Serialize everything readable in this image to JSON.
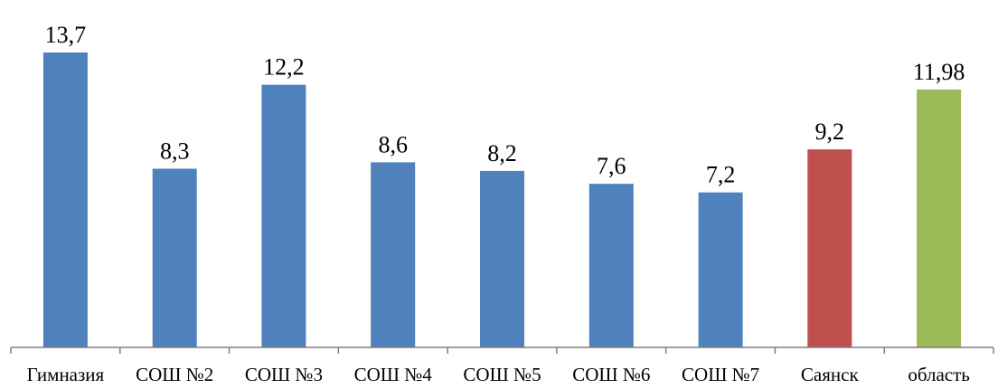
{
  "chart_data": {
    "type": "bar",
    "categories": [
      "Гимназия",
      "СОШ №2",
      "СОШ №3",
      "СОШ №4",
      "СОШ №5",
      "СОШ №6",
      "СОШ №7",
      "Саянск",
      "область"
    ],
    "values": [
      13.7,
      8.3,
      12.2,
      8.6,
      8.2,
      7.6,
      7.2,
      9.2,
      11.98
    ],
    "data_labels": [
      "13,7",
      "8,3",
      "12,2",
      "8,6",
      "8,2",
      "7,6",
      "7,2",
      "9,2",
      "11,98"
    ],
    "bar_colors": [
      "#4f81bd",
      "#4f81bd",
      "#4f81bd",
      "#4f81bd",
      "#4f81bd",
      "#4f81bd",
      "#4f81bd",
      "#c0504d",
      "#9bbb59"
    ],
    "title": "",
    "xlabel": "",
    "ylabel": "",
    "ylim": [
      0,
      13.7
    ],
    "grid": false,
    "legend": "none"
  }
}
